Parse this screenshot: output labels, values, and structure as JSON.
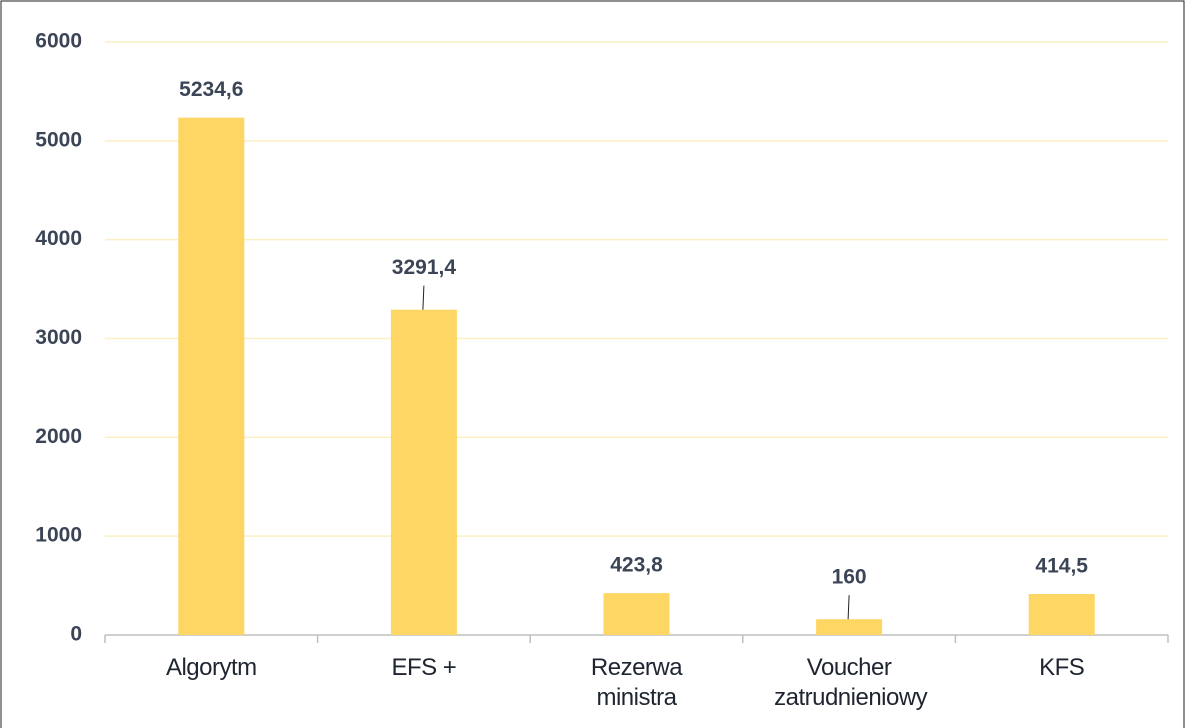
{
  "chart_data": {
    "type": "bar",
    "categories": [
      "Algorytm",
      "EFS +",
      "Rezerwa ministra",
      "Voucher zatrudnieniowy",
      "KFS"
    ],
    "values": [
      5234.6,
      3291.4,
      423.8,
      160,
      414.5
    ],
    "value_labels": [
      "5234,6",
      "3291,4",
      "423,8",
      "160",
      "414,5"
    ],
    "color": "#fdd663",
    "ylim": [
      0,
      6000
    ],
    "yticks": [
      0,
      1000,
      2000,
      3000,
      4000,
      5000,
      6000
    ],
    "grid": true
  }
}
